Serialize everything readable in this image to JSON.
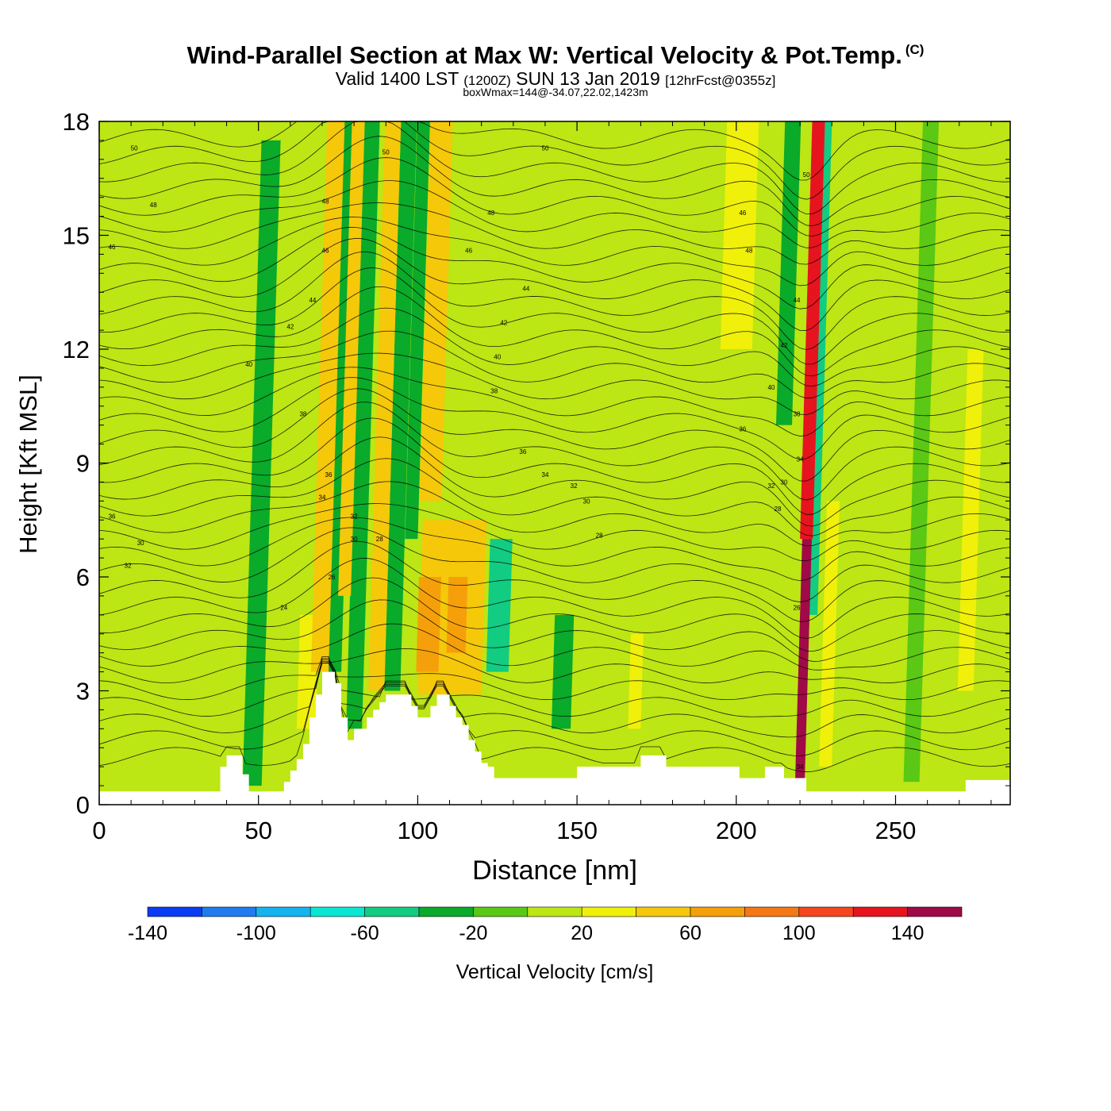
{
  "header": {
    "title_main": "Wind-Parallel Section at Max W: Vertical Velocity & Pot.Temp.",
    "title_mark": "(C)",
    "subtitle_a": "Valid 1400 LST",
    "subtitle_b": "(1200Z)",
    "subtitle_c": "SUN 13 Jan 2019",
    "subtitle_d": "[12hrFcst@0355z]",
    "subsubtitle": "boxWmax=144@-34.07,22.02,1423m"
  },
  "chart_data": {
    "type": "heatmap",
    "title": "Wind-Parallel Section at Max W: Vertical Velocity & Pot.Temp.",
    "xlabel": "Distance [nm]",
    "ylabel": "Height [Kft MSL]",
    "xlim": [
      0,
      286
    ],
    "ylim": [
      0,
      18
    ],
    "x_ticks": [
      0,
      50,
      100,
      150,
      200,
      250
    ],
    "x_tick_labels": [
      "0",
      "50",
      "100",
      "150",
      "200",
      "250"
    ],
    "y_ticks": [
      0,
      3,
      6,
      9,
      12,
      15,
      18
    ],
    "y_tick_labels": [
      "0",
      "3",
      "6",
      "9",
      "12",
      "15",
      "18"
    ],
    "colorbar": {
      "label": "Vertical Velocity [cm/s]",
      "boundaries": [
        -140,
        -120,
        -100,
        -80,
        -60,
        -40,
        -20,
        0,
        20,
        40,
        60,
        80,
        100,
        120,
        140,
        160
      ],
      "colors": [
        "#0a3cf5",
        "#1e7cf0",
        "#14b4f0",
        "#0ae6d2",
        "#12cc82",
        "#0aaa2a",
        "#5ac814",
        "#bce614",
        "#f0f00a",
        "#f5c80a",
        "#f5a00a",
        "#f57814",
        "#f5461e",
        "#e6141e",
        "#a00a46"
      ],
      "tick_values": [
        -140,
        -100,
        -60,
        -20,
        20,
        60,
        100,
        140
      ],
      "tick_labels": [
        "-140",
        "-100",
        "-60",
        "-20",
        "20",
        "60",
        "100",
        "140"
      ]
    },
    "terrain": {
      "x": [
        0,
        36,
        38,
        40,
        43,
        45,
        47,
        49,
        53,
        55,
        58,
        60,
        62,
        64,
        66,
        68,
        70,
        72,
        74,
        76,
        78,
        80,
        82,
        84,
        86,
        88,
        90,
        92,
        94,
        96,
        98,
        100,
        102,
        104,
        106,
        108,
        110,
        112,
        114,
        116,
        118,
        120,
        122,
        124,
        130,
        136,
        142,
        148,
        150,
        152,
        168,
        170,
        176,
        178,
        200,
        201,
        208,
        209,
        214,
        215,
        221,
        222,
        271,
        272,
        286
      ],
      "height_kft": [
        0.35,
        0.35,
        1.0,
        1.3,
        1.3,
        0.8,
        0.35,
        0.35,
        0.35,
        0.35,
        0.6,
        0.9,
        1.2,
        1.6,
        2.3,
        2.9,
        3.5,
        3.5,
        3.2,
        2.3,
        1.7,
        2.0,
        2.0,
        2.3,
        2.5,
        2.7,
        2.9,
        2.9,
        2.9,
        2.9,
        2.6,
        2.3,
        2.3,
        2.6,
        2.9,
        2.9,
        2.6,
        2.3,
        2.1,
        1.7,
        1.4,
        1.1,
        1.0,
        0.7,
        0.7,
        0.7,
        0.7,
        0.7,
        1.0,
        1.0,
        1.0,
        1.3,
        1.3,
        1.0,
        1.0,
        0.7,
        0.7,
        1.0,
        1.0,
        0.7,
        0.7,
        0.35,
        0.35,
        0.65,
        0.65
      ]
    },
    "updraft_features": [
      {
        "x": 71,
        "base": 3.5,
        "top": 18,
        "w": 9,
        "value": 40
      },
      {
        "x": 74,
        "base": 3.5,
        "top": 18,
        "w": 4,
        "value": -40
      },
      {
        "x": 77,
        "base": 5.5,
        "top": 18,
        "w": 4,
        "value": 40
      },
      {
        "x": 80,
        "base": 2.0,
        "top": 18,
        "w": 5,
        "value": -30
      },
      {
        "x": 87,
        "base": 3.0,
        "top": 18,
        "w": 5,
        "value": 50
      },
      {
        "x": 92,
        "base": 3.0,
        "top": 18,
        "w": 5,
        "value": -30
      },
      {
        "x": 98,
        "base": 7.0,
        "top": 18,
        "w": 4,
        "value": -30
      },
      {
        "x": 104,
        "base": 8.0,
        "top": 18,
        "w": 7,
        "value": 50
      },
      {
        "x": 110,
        "base": 2.9,
        "top": 7.5,
        "w": 20,
        "value": 40
      },
      {
        "x": 103,
        "base": 3.5,
        "top": 6.0,
        "w": 7,
        "value": 60
      },
      {
        "x": 112,
        "base": 4.0,
        "top": 6.0,
        "w": 6,
        "value": 60
      },
      {
        "x": 125,
        "base": 3.5,
        "top": 7.0,
        "w": 7,
        "value": -45
      },
      {
        "x": 65,
        "base": 2.0,
        "top": 5.0,
        "w": 6,
        "value": 25
      },
      {
        "x": 48,
        "base": 0.5,
        "top": 17.5,
        "w": 6,
        "value": -25
      },
      {
        "x": 145,
        "base": 2.0,
        "top": 5.0,
        "w": 6,
        "value": -30
      },
      {
        "x": 168,
        "base": 2.0,
        "top": 4.5,
        "w": 4,
        "value": 25
      },
      {
        "x": 200,
        "base": 12.0,
        "top": 18,
        "w": 10,
        "value": 25
      },
      {
        "x": 215,
        "base": 10.0,
        "top": 18,
        "w": 5,
        "value": -35
      },
      {
        "x": 220,
        "base": 0.7,
        "top": 7.0,
        "w": 3,
        "value": 140
      },
      {
        "x": 222,
        "base": 7.0,
        "top": 18,
        "w": 4,
        "value": 120
      },
      {
        "x": 224,
        "base": 5.0,
        "top": 18,
        "w": 3,
        "value": -60
      },
      {
        "x": 228,
        "base": 1.0,
        "top": 8.0,
        "w": 4,
        "value": 25
      },
      {
        "x": 255,
        "base": 0.6,
        "top": 18,
        "w": 5,
        "value": -20
      },
      {
        "x": 272,
        "base": 3.0,
        "top": 12.0,
        "w": 5,
        "value": 25
      }
    ],
    "theta_contour_labels": [
      {
        "x": 11,
        "y": 17.3,
        "label": "50"
      },
      {
        "x": 17,
        "y": 15.8,
        "label": "48"
      },
      {
        "x": 4,
        "y": 14.7,
        "label": "46"
      },
      {
        "x": 71,
        "y": 15.9,
        "label": "48"
      },
      {
        "x": 71,
        "y": 14.6,
        "label": "46"
      },
      {
        "x": 67,
        "y": 13.3,
        "label": "44"
      },
      {
        "x": 60,
        "y": 12.6,
        "label": "42"
      },
      {
        "x": 47,
        "y": 11.6,
        "label": "40"
      },
      {
        "x": 64,
        "y": 10.3,
        "label": "38"
      },
      {
        "x": 72,
        "y": 8.7,
        "label": "36"
      },
      {
        "x": 70,
        "y": 8.1,
        "label": "34"
      },
      {
        "x": 80,
        "y": 7.6,
        "label": "32"
      },
      {
        "x": 80,
        "y": 7.0,
        "label": "30"
      },
      {
        "x": 88,
        "y": 7.0,
        "label": "28"
      },
      {
        "x": 73,
        "y": 6.0,
        "label": "26"
      },
      {
        "x": 58,
        "y": 5.2,
        "label": "24"
      },
      {
        "x": 4,
        "y": 7.6,
        "label": "36"
      },
      {
        "x": 13,
        "y": 6.9,
        "label": "30"
      },
      {
        "x": 9,
        "y": 6.3,
        "label": "32"
      },
      {
        "x": 90,
        "y": 17.2,
        "label": "50"
      },
      {
        "x": 140,
        "y": 17.3,
        "label": "50"
      },
      {
        "x": 123,
        "y": 15.6,
        "label": "48"
      },
      {
        "x": 116,
        "y": 14.6,
        "label": "46"
      },
      {
        "x": 134,
        "y": 13.6,
        "label": "44"
      },
      {
        "x": 127,
        "y": 12.7,
        "label": "42"
      },
      {
        "x": 125,
        "y": 11.8,
        "label": "40"
      },
      {
        "x": 124,
        "y": 10.9,
        "label": "38"
      },
      {
        "x": 133,
        "y": 9.3,
        "label": "36"
      },
      {
        "x": 140,
        "y": 8.7,
        "label": "34"
      },
      {
        "x": 149,
        "y": 8.4,
        "label": "32"
      },
      {
        "x": 153,
        "y": 8.0,
        "label": "30"
      },
      {
        "x": 157,
        "y": 7.1,
        "label": "28"
      },
      {
        "x": 202,
        "y": 15.6,
        "label": "46"
      },
      {
        "x": 204,
        "y": 14.6,
        "label": "48"
      },
      {
        "x": 222,
        "y": 16.6,
        "label": "50"
      },
      {
        "x": 219,
        "y": 13.3,
        "label": "44"
      },
      {
        "x": 215,
        "y": 12.1,
        "label": "42"
      },
      {
        "x": 211,
        "y": 11.0,
        "label": "40"
      },
      {
        "x": 219,
        "y": 10.3,
        "label": "38"
      },
      {
        "x": 202,
        "y": 9.9,
        "label": "36"
      },
      {
        "x": 220,
        "y": 9.1,
        "label": "34"
      },
      {
        "x": 211,
        "y": 8.4,
        "label": "32"
      },
      {
        "x": 215,
        "y": 8.5,
        "label": "30"
      },
      {
        "x": 213,
        "y": 7.8,
        "label": "28"
      },
      {
        "x": 219,
        "y": 5.2,
        "label": "26"
      },
      {
        "x": 220,
        "y": 1.0,
        "label": "34"
      }
    ]
  }
}
